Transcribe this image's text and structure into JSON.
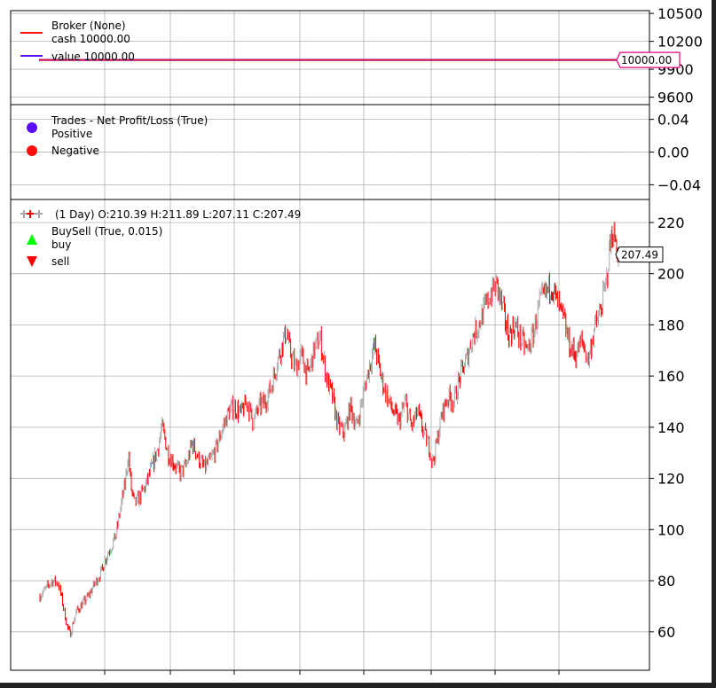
{
  "chart_data": [
    {
      "type": "line",
      "panel": "broker",
      "series": [
        {
          "name": "cash",
          "legend_label": "cash 10000.00",
          "color": "#ff0e0e",
          "values": [
            10000.0,
            10000.0
          ]
        },
        {
          "name": "value",
          "legend_label": "value 10000.00",
          "color": "#5b0fff",
          "values": [
            10000.0,
            10000.0
          ]
        }
      ],
      "legend_title": "Broker (None)",
      "yticks": [
        "10500",
        "10200",
        "9900",
        "9600"
      ],
      "ytick_values": [
        10500,
        10200,
        9900,
        9600
      ],
      "ylim": [
        9520,
        10530
      ],
      "last_value_label": "10000.00",
      "grid": true,
      "legend_position": "top-left"
    },
    {
      "type": "scatter",
      "panel": "trades",
      "legend_title": "Trades - Net Profit/Loss (True)",
      "series": [
        {
          "name": "Positive",
          "color": "#5b0fff",
          "values": []
        },
        {
          "name": "Negative",
          "color": "#ff0e0e",
          "values": []
        }
      ],
      "yticks": [
        "0.04",
        "0.00",
        "−0.04"
      ],
      "ytick_values": [
        0.04,
        0.0,
        -0.04
      ],
      "ylim": [
        -0.058,
        0.058
      ],
      "zero_line": true,
      "grid": true,
      "legend_position": "top-left"
    },
    {
      "type": "line",
      "panel": "price",
      "style": "ohlc-bars",
      "legend_title": "(1 Day) O:210.39 H:211.89 L:207.11 C:207.49",
      "up_color": "#a8a8a8",
      "down_color": "#ff0000",
      "signals": [
        {
          "name": "BuySell (True, 0.015)",
          "values": []
        },
        {
          "name": "buy",
          "color": "#00ff00",
          "values": []
        },
        {
          "name": "sell",
          "color": "#ff0000",
          "values": []
        }
      ],
      "price_path": [
        [
          0,
          74
        ],
        [
          0.01,
          77
        ],
        [
          0.02,
          80
        ],
        [
          0.03,
          79
        ],
        [
          0.035,
          74
        ],
        [
          0.04,
          68
        ],
        [
          0.045,
          62
        ],
        [
          0.05,
          59
        ],
        [
          0.055,
          64
        ],
        [
          0.06,
          68
        ],
        [
          0.07,
          71
        ],
        [
          0.08,
          74
        ],
        [
          0.09,
          79
        ],
        [
          0.1,
          83
        ],
        [
          0.11,
          90
        ],
        [
          0.12,
          95
        ],
        [
          0.125,
          98
        ],
        [
          0.13,
          105
        ],
        [
          0.135,
          112
        ],
        [
          0.14,
          118
        ],
        [
          0.145,
          130
        ],
        [
          0.15,
          116
        ],
        [
          0.155,
          110
        ],
        [
          0.165,
          113
        ],
        [
          0.175,
          118
        ],
        [
          0.185,
          125
        ],
        [
          0.195,
          133
        ],
        [
          0.2,
          140
        ],
        [
          0.205,
          136
        ],
        [
          0.21,
          130
        ],
        [
          0.22,
          126
        ],
        [
          0.23,
          122
        ],
        [
          0.24,
          125
        ],
        [
          0.25,
          134
        ],
        [
          0.26,
          128
        ],
        [
          0.27,
          124
        ],
        [
          0.28,
          127
        ],
        [
          0.29,
          132
        ],
        [
          0.3,
          140
        ],
        [
          0.31,
          146
        ],
        [
          0.32,
          148
        ],
        [
          0.33,
          145
        ],
        [
          0.34,
          150
        ],
        [
          0.35,
          142
        ],
        [
          0.36,
          148
        ],
        [
          0.37,
          150
        ],
        [
          0.38,
          156
        ],
        [
          0.39,
          166
        ],
        [
          0.4,
          174
        ],
        [
          0.405,
          178
        ],
        [
          0.41,
          170
        ],
        [
          0.42,
          163
        ],
        [
          0.43,
          168
        ],
        [
          0.44,
          160
        ],
        [
          0.45,
          170
        ],
        [
          0.46,
          175
        ],
        [
          0.47,
          160
        ],
        [
          0.48,
          152
        ],
        [
          0.49,
          140
        ],
        [
          0.5,
          138
        ],
        [
          0.51,
          148
        ],
        [
          0.52,
          140
        ],
        [
          0.53,
          152
        ],
        [
          0.54,
          163
        ],
        [
          0.55,
          172
        ],
        [
          0.56,
          160
        ],
        [
          0.57,
          152
        ],
        [
          0.58,
          146
        ],
        [
          0.59,
          142
        ],
        [
          0.6,
          150
        ],
        [
          0.61,
          140
        ],
        [
          0.62,
          146
        ],
        [
          0.63,
          138
        ],
        [
          0.64,
          132
        ],
        [
          0.645,
          126
        ],
        [
          0.65,
          132
        ],
        [
          0.66,
          145
        ],
        [
          0.67,
          152
        ],
        [
          0.68,
          150
        ],
        [
          0.69,
          160
        ],
        [
          0.7,
          166
        ],
        [
          0.71,
          175
        ],
        [
          0.72,
          180
        ],
        [
          0.73,
          186
        ],
        [
          0.74,
          192
        ],
        [
          0.75,
          196
        ],
        [
          0.76,
          186
        ],
        [
          0.77,
          176
        ],
        [
          0.78,
          180
        ],
        [
          0.79,
          174
        ],
        [
          0.8,
          170
        ],
        [
          0.81,
          176
        ],
        [
          0.82,
          188
        ],
        [
          0.83,
          192
        ],
        [
          0.84,
          196
        ],
        [
          0.85,
          188
        ],
        [
          0.86,
          182
        ],
        [
          0.87,
          172
        ],
        [
          0.88,
          168
        ],
        [
          0.89,
          174
        ],
        [
          0.9,
          166
        ],
        [
          0.91,
          178
        ],
        [
          0.92,
          185
        ],
        [
          0.93,
          196
        ],
        [
          0.935,
          208
        ],
        [
          0.94,
          217
        ],
        [
          0.945,
          213
        ],
        [
          0.95,
          207.5
        ]
      ],
      "yticks": [
        "220",
        "200",
        "180",
        "160",
        "140",
        "120",
        "100",
        "80",
        "60"
      ],
      "ytick_values": [
        220,
        200,
        180,
        160,
        140,
        120,
        100,
        80,
        60
      ],
      "ylim": [
        45,
        229
      ],
      "last_value_label": "207.49",
      "grid": true,
      "legend_position": "top-left"
    }
  ]
}
